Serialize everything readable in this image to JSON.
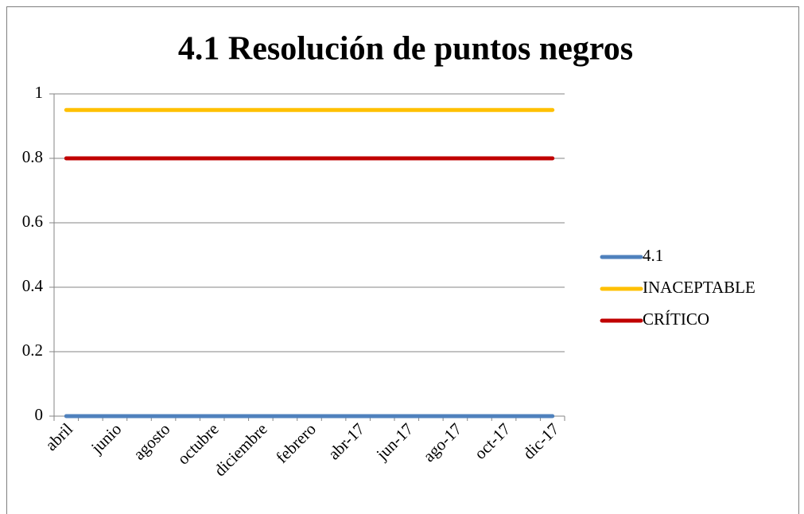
{
  "chart_data": {
    "type": "line",
    "title": "4.1 Resolución de puntos negros",
    "categories": [
      "abril",
      null,
      "junio",
      null,
      "agosto",
      null,
      "octubre",
      null,
      "diciembre",
      null,
      "febrero",
      null,
      "abr-17",
      null,
      "jun-17",
      null,
      "ago-17",
      null,
      "oct-17",
      null,
      "dic-17"
    ],
    "series": [
      {
        "name": "4.1",
        "color": "#4f81bd",
        "values": [
          0,
          0,
          0,
          0,
          0,
          0,
          0,
          0,
          0,
          0,
          0,
          0,
          0,
          0,
          0,
          0,
          0,
          0,
          0,
          0,
          0
        ]
      },
      {
        "name": "INACEPTABLE",
        "color": "#ffc000",
        "values": [
          0.95,
          0.95,
          0.95,
          0.95,
          0.95,
          0.95,
          0.95,
          0.95,
          0.95,
          0.95,
          0.95,
          0.95,
          0.95,
          0.95,
          0.95,
          0.95,
          0.95,
          0.95,
          0.95,
          0.95,
          0.95
        ]
      },
      {
        "name": "CRÍTICO",
        "color": "#c00000",
        "values": [
          0.8,
          0.8,
          0.8,
          0.8,
          0.8,
          0.8,
          0.8,
          0.8,
          0.8,
          0.8,
          0.8,
          0.8,
          0.8,
          0.8,
          0.8,
          0.8,
          0.8,
          0.8,
          0.8,
          0.8,
          0.8
        ]
      }
    ],
    "ylim": [
      0,
      1
    ],
    "yticks": [
      0,
      0.2,
      0.4,
      0.6,
      0.8,
      1
    ],
    "grid": true,
    "legend": "right"
  }
}
